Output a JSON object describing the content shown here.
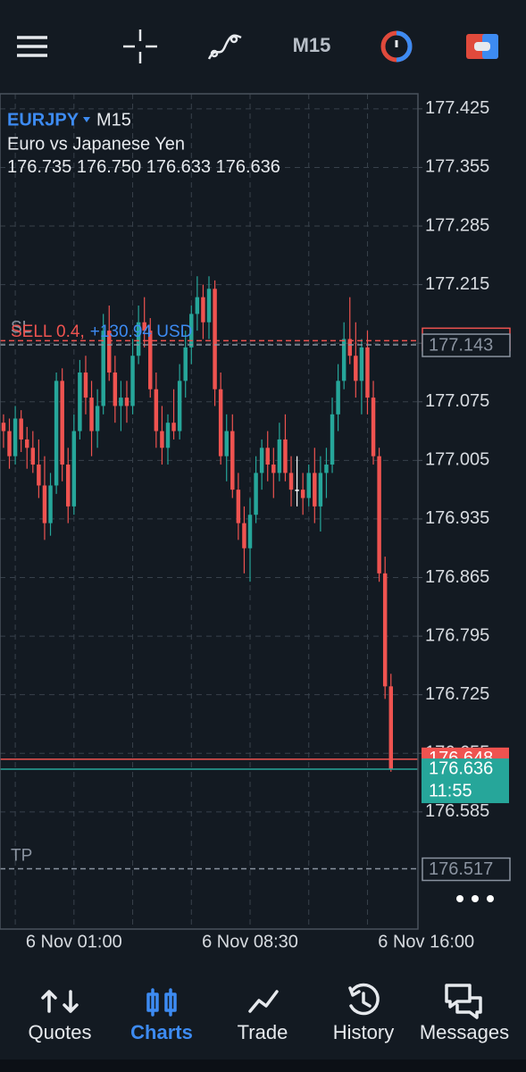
{
  "toolbar": {
    "timeframe": "M15"
  },
  "chart_data": {
    "type": "candlestick",
    "symbol": "EURJPY",
    "timeframe": "M15",
    "description": "Euro vs Japanese Yen",
    "ohlc_text": [
      "176.735",
      "176.750",
      "176.633",
      "176.636"
    ],
    "open": [
      177.05,
      177.04,
      177.01,
      177.055,
      177.03,
      177.02,
      177.0,
      176.975,
      176.93,
      176.975,
      177.1,
      177.0,
      176.95,
      177.04,
      177.11,
      177.08,
      177.04,
      177.07,
      177.16,
      177.11,
      177.07,
      177.08,
      177.07,
      177.13,
      177.17,
      177.16,
      177.09,
      177.04,
      177.02,
      177.05,
      177.04,
      177.1,
      177.14,
      177.18,
      177.2,
      177.17,
      177.21,
      177.09,
      177.01,
      177.04,
      176.97,
      176.93,
      176.9,
      176.94,
      176.99,
      177.02,
      177.0,
      176.99,
      177.03,
      176.99,
      176.97,
      176.97,
      176.96,
      176.99,
      176.95,
      176.99,
      177.0,
      177.06,
      177.1,
      177.15,
      177.13,
      177.1,
      177.14,
      177.08,
      177.01,
      176.87,
      176.735
    ],
    "high": [
      177.06,
      177.055,
      177.07,
      177.065,
      177.045,
      177.04,
      177.03,
      177.01,
      176.99,
      177.11,
      177.115,
      177.02,
      177.06,
      177.125,
      177.13,
      177.1,
      177.09,
      177.18,
      177.19,
      177.13,
      177.1,
      177.1,
      177.15,
      177.19,
      177.2,
      177.175,
      177.11,
      177.07,
      177.06,
      177.09,
      177.12,
      177.16,
      177.19,
      177.225,
      177.215,
      177.225,
      177.22,
      177.11,
      177.06,
      177.06,
      176.99,
      176.95,
      176.96,
      177.01,
      177.03,
      177.04,
      177.02,
      177.05,
      177.06,
      177.01,
      177.01,
      176.99,
      177.0,
      177.02,
      177.01,
      177.02,
      177.08,
      177.12,
      177.17,
      177.2,
      177.17,
      177.15,
      177.16,
      177.1,
      177.02,
      176.89,
      176.75
    ],
    "low": [
      177.02,
      176.995,
      177.0,
      177.015,
      176.995,
      176.99,
      176.96,
      176.91,
      176.915,
      176.965,
      176.98,
      176.93,
      176.94,
      177.03,
      177.06,
      177.01,
      177.02,
      177.06,
      177.1,
      177.05,
      177.04,
      177.05,
      177.06,
      177.12,
      177.14,
      177.08,
      177.02,
      177.0,
      177.0,
      177.03,
      177.03,
      177.08,
      177.12,
      177.16,
      177.15,
      177.15,
      177.07,
      177.0,
      176.98,
      176.96,
      176.91,
      176.87,
      176.86,
      176.93,
      176.97,
      176.98,
      176.96,
      176.98,
      176.98,
      176.95,
      176.95,
      176.94,
      176.95,
      176.93,
      176.92,
      176.96,
      176.99,
      177.04,
      177.09,
      177.12,
      177.08,
      177.06,
      177.06,
      177.0,
      176.86,
      176.72,
      176.633
    ],
    "close": [
      177.04,
      177.01,
      177.055,
      177.03,
      177.02,
      177.0,
      176.975,
      176.93,
      176.975,
      177.1,
      177.0,
      176.95,
      177.04,
      177.11,
      177.08,
      177.04,
      177.07,
      177.16,
      177.11,
      177.07,
      177.08,
      177.07,
      177.13,
      177.17,
      177.16,
      177.09,
      177.04,
      177.02,
      177.05,
      177.04,
      177.1,
      177.14,
      177.18,
      177.2,
      177.17,
      177.21,
      177.09,
      177.01,
      177.04,
      176.97,
      176.93,
      176.9,
      176.94,
      176.99,
      177.02,
      177.0,
      176.99,
      177.03,
      176.99,
      176.97,
      176.97,
      176.96,
      176.99,
      176.95,
      176.99,
      177.0,
      177.06,
      177.1,
      177.15,
      177.13,
      177.1,
      177.14,
      177.08,
      177.01,
      176.87,
      176.735,
      176.636
    ],
    "up_color": "#26a69a",
    "down_color": "#ef5350",
    "flat_color": "#ffffff",
    "xlim": [
      -0.6,
      70.6
    ],
    "xticks": [
      {
        "value": 12,
        "label": "6 Nov 01:00"
      },
      {
        "value": 42,
        "label": "6 Nov 08:30"
      },
      {
        "value": 72,
        "label": "6 Nov 16:00"
      }
    ],
    "ylim": [
      176.445,
      177.443
    ],
    "yticks": [
      177.425,
      177.355,
      177.285,
      177.215,
      177.145,
      177.075,
      177.005,
      176.935,
      176.865,
      176.795,
      176.725,
      176.655,
      176.585
    ],
    "grid": true,
    "levels": [
      {
        "label": "SL",
        "value": 177.148,
        "color": "#ef5350",
        "style": "dashed"
      },
      {
        "order": "SELL 0.4,",
        "profit": "+130.94 USD",
        "value": 177.143,
        "color": "#8a93a0",
        "style": "dashed"
      },
      {
        "value": 176.648,
        "color": "#ef5350",
        "style": "solid"
      },
      {
        "value": 176.636,
        "color": "#26a69a",
        "style": "solid",
        "countdown": "11:55"
      },
      {
        "label": "TP",
        "value": 176.517,
        "color": "#8a93a0",
        "style": "dashed"
      }
    ]
  },
  "nav": [
    {
      "label": "Quotes"
    },
    {
      "label": "Charts",
      "active": true
    },
    {
      "label": "Trade"
    },
    {
      "label": "History"
    },
    {
      "label": "Messages"
    }
  ]
}
